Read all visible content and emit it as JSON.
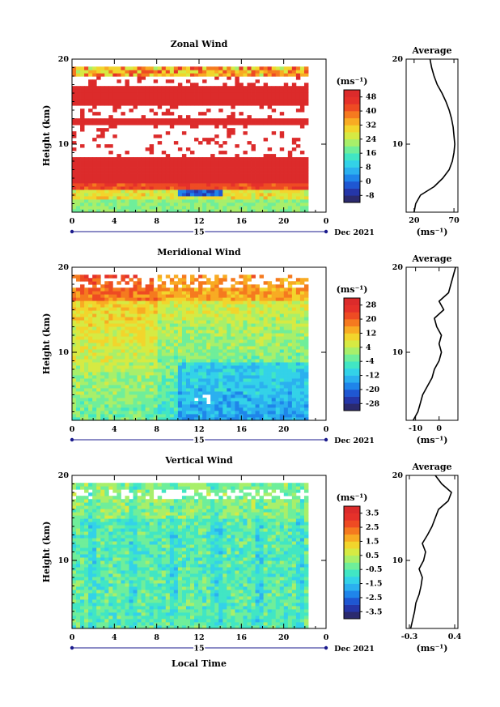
{
  "chart_data": [
    {
      "type": "heatmap",
      "title": "Zonal Wind",
      "ylabel": "Height (km)",
      "colorbar_unit": "(ms⁻¹)",
      "colorbar_ticks": [
        "48",
        "40",
        "32",
        "24",
        "16",
        "8",
        "0",
        "-8"
      ],
      "colorbar_range": [
        -12,
        52
      ],
      "x_ticks": [
        "0",
        "4",
        "8",
        "12",
        "16",
        "20",
        "0"
      ],
      "x_range": [
        0,
        24
      ],
      "y_ticks": [
        "20",
        "10"
      ],
      "y_range": [
        2,
        20
      ],
      "date_day": "15",
      "date_label": "Dec 2021",
      "profile": {
        "title": "Average",
        "x_ticks": [
          "20",
          "70"
        ],
        "xlim": [
          10,
          75
        ],
        "y_ticks": [
          "20",
          "10"
        ],
        "xlabel": "(ms⁻¹)",
        "heights": [
          2,
          3,
          4,
          5,
          6,
          7,
          8,
          9,
          10,
          11,
          12,
          13,
          14,
          15,
          16,
          17,
          18,
          19,
          20
        ],
        "values": [
          20,
          22,
          28,
          45,
          56,
          64,
          68,
          70,
          71,
          70,
          69,
          67,
          64,
          60,
          55,
          49,
          45,
          42,
          40
        ]
      }
    },
    {
      "type": "heatmap",
      "title": "Meridional Wind",
      "ylabel": "Height (km)",
      "colorbar_unit": "(ms⁻¹)",
      "colorbar_ticks": [
        "28",
        "20",
        "12",
        "4",
        "-4",
        "-12",
        "-20",
        "-28"
      ],
      "colorbar_range": [
        -32,
        32
      ],
      "x_ticks": [
        "0",
        "4",
        "8",
        "12",
        "16",
        "20",
        "0"
      ],
      "x_range": [
        0,
        24
      ],
      "y_ticks": [
        "20",
        "10"
      ],
      "y_range": [
        2,
        20
      ],
      "date_day": "15",
      "date_label": "Dec 2021",
      "profile": {
        "title": "Average",
        "x_ticks": [
          "-10",
          "0"
        ],
        "xlim": [
          -14,
          8
        ],
        "y_ticks": [
          "20",
          "10"
        ],
        "xlabel": "(ms⁻¹)",
        "heights": [
          2,
          3,
          4,
          5,
          6,
          7,
          8,
          9,
          10,
          11,
          12,
          13,
          14,
          15,
          16,
          17,
          18,
          19,
          20
        ],
        "values": [
          -11,
          -9,
          -8,
          -7,
          -5,
          -3,
          -2,
          0,
          1,
          0,
          1,
          -1,
          -2,
          2,
          0,
          4,
          5,
          6,
          7
        ]
      }
    },
    {
      "type": "heatmap",
      "title": "Vertical Wind",
      "ylabel": "Height (km)",
      "xlabel": "Local Time",
      "colorbar_unit": "(ms⁻¹)",
      "colorbar_ticks": [
        "3.5",
        "2.5",
        "1.5",
        "0.5",
        "-0.5",
        "-1.5",
        "-2.5",
        "-3.5"
      ],
      "colorbar_range": [
        -4,
        4
      ],
      "x_ticks": [
        "0",
        "4",
        "8",
        "12",
        "16",
        "20",
        "0"
      ],
      "x_range": [
        0,
        24
      ],
      "y_ticks": [
        "20",
        "10"
      ],
      "y_range": [
        2,
        20
      ],
      "date_day": "15",
      "date_label": "Dec 2021",
      "profile": {
        "title": "Average",
        "x_ticks": [
          "-0.3",
          "0.4"
        ],
        "xlim": [
          -0.35,
          0.45
        ],
        "y_ticks": [
          "20",
          "10"
        ],
        "xlabel": "(ms⁻¹)",
        "heights": [
          2,
          3,
          4,
          5,
          6,
          7,
          8,
          9,
          10,
          11,
          12,
          13,
          14,
          15,
          16,
          17,
          18,
          19,
          20
        ],
        "values": [
          -0.28,
          -0.25,
          -0.22,
          -0.2,
          -0.15,
          -0.12,
          -0.1,
          -0.15,
          -0.08,
          -0.05,
          -0.1,
          -0.02,
          0.05,
          0.1,
          0.15,
          0.3,
          0.35,
          0.2,
          0.1
        ]
      }
    }
  ]
}
